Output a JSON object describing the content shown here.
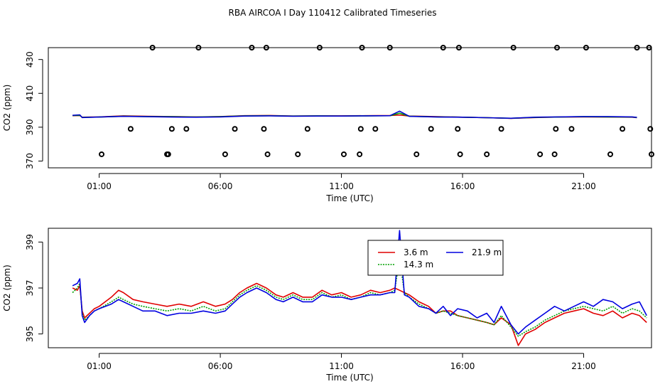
{
  "title": "RBA AIRCOA I  Day 110412  Calibrated Timeseries",
  "chart_data": [
    {
      "type": "scatter",
      "title": "",
      "xlabel": "Time (UTC)",
      "ylabel": "CO2 (ppm)",
      "xlim": [
        -1.1,
        23.8
      ],
      "ylim": [
        366,
        437
      ],
      "x_ticks": [
        1,
        6,
        11,
        16,
        21
      ],
      "x_tick_labels": [
        "01:00",
        "06:00",
        "11:00",
        "16:00",
        "21:00"
      ],
      "y_ticks": [
        370,
        390,
        410,
        430
      ],
      "y_tick_labels": [
        "370",
        "390",
        "410",
        "430"
      ],
      "grid": false,
      "series": [
        {
          "color": "#d00000",
          "style": "line",
          "x": [
            -0.1,
            0.2,
            0.3,
            1,
            2,
            3,
            4,
            5,
            6,
            7,
            8,
            9,
            10,
            11,
            12,
            13,
            13.4,
            13.8,
            15,
            16,
            17,
            18,
            19,
            20,
            21,
            22,
            23,
            23.2
          ],
          "y": [
            396.8,
            396.9,
            395.9,
            396.1,
            396.7,
            396.4,
            396.3,
            396.1,
            396.3,
            396.8,
            396.9,
            396.6,
            396.7,
            396.7,
            396.8,
            396.9,
            397.2,
            396.6,
            396.2,
            395.9,
            395.6,
            395.2,
            395.7,
            396.0,
            396.1,
            396.0,
            395.9,
            395.6
          ]
        },
        {
          "color": "#00a000",
          "style": "line",
          "x": [
            -0.1,
            0.2,
            0.3,
            1,
            2,
            3,
            4,
            5,
            6,
            7,
            8,
            9,
            10,
            11,
            12,
            13,
            13.4,
            13.8,
            15,
            16,
            17,
            18,
            19,
            20,
            21,
            22,
            23,
            23.2
          ],
          "y": [
            396.9,
            397.0,
            395.8,
            396.0,
            396.5,
            396.3,
            396.2,
            396.0,
            396.2,
            396.7,
            396.8,
            396.6,
            396.7,
            396.6,
            396.7,
            396.8,
            398.3,
            396.5,
            396.1,
            395.9,
            395.6,
            395.3,
            395.8,
            396.0,
            396.2,
            396.1,
            396.0,
            395.7
          ]
        },
        {
          "color": "#0000d0",
          "style": "line",
          "x": [
            -0.1,
            0.2,
            0.3,
            1,
            2,
            3,
            4,
            5,
            6,
            7,
            8,
            9,
            10,
            11,
            12,
            13,
            13.4,
            13.8,
            15,
            16,
            17,
            18,
            19,
            20,
            21,
            22,
            23,
            23.2
          ],
          "y": [
            397.0,
            397.3,
            395.7,
            396.0,
            396.4,
            396.2,
            396.0,
            395.9,
            396.1,
            396.6,
            396.7,
            396.5,
            396.6,
            396.6,
            396.7,
            396.8,
            399.5,
            396.4,
            396.0,
            395.9,
            395.6,
            395.3,
            395.9,
            396.1,
            396.3,
            396.3,
            396.1,
            395.8
          ]
        },
        {
          "color": "#000000",
          "style": "points",
          "x": [
            1.1,
            2.3,
            3.2,
            3.8,
            3.85,
            4.0,
            4.6,
            5.1,
            6.2,
            6.6,
            7.3,
            7.8,
            7.9,
            7.95,
            9.2,
            9.6,
            10.1,
            11.1,
            11.75,
            11.8,
            11.85,
            12.4,
            13.0,
            14.1,
            14.7,
            15.2,
            15.8,
            15.85,
            15.9,
            17.0,
            17.6,
            18.1,
            19.2,
            19.8,
            19.85,
            19.9,
            20.5,
            21.1,
            22.1,
            22.6,
            23.2,
            23.7,
            23.75,
            23.8
          ],
          "y": [
            374,
            389,
            437,
            374,
            374,
            389,
            389,
            437,
            374,
            389,
            437,
            389,
            437,
            374,
            374,
            389,
            437,
            374,
            374,
            389,
            437,
            389,
            437,
            374,
            389,
            437,
            389,
            437,
            374,
            374,
            389,
            437,
            374,
            374,
            389,
            437,
            389,
            437,
            374,
            389,
            437,
            437,
            389,
            374
          ]
        }
      ]
    },
    {
      "type": "line",
      "title": "",
      "xlabel": "Time (UTC)",
      "ylabel": "CO2 (ppm)",
      "xlim": [
        -1.1,
        23.8
      ],
      "ylim": [
        394.4,
        399.6
      ],
      "x_ticks": [
        1,
        6,
        11,
        16,
        21
      ],
      "x_tick_labels": [
        "01:00",
        "06:00",
        "11:00",
        "16:00",
        "21:00"
      ],
      "y_ticks": [
        395,
        397,
        399
      ],
      "y_tick_labels": [
        "395",
        "397",
        "399"
      ],
      "grid": false,
      "legend_position": "top-center",
      "series": [
        {
          "name": "3.6 m",
          "color": "#e00000",
          "x": [
            -0.1,
            0.1,
            0.2,
            0.3,
            0.4,
            0.6,
            0.8,
            1,
            1.5,
            1.8,
            2,
            2.4,
            2.8,
            3.3,
            3.8,
            4.3,
            4.8,
            5.3,
            5.8,
            6.2,
            6.5,
            6.8,
            7.1,
            7.5,
            7.9,
            8.3,
            8.6,
            9,
            9.4,
            9.8,
            10.2,
            10.6,
            11,
            11.4,
            11.8,
            12.2,
            12.6,
            13,
            13.2,
            13.4,
            13.6,
            13.8,
            14.2,
            14.6,
            14.9,
            15.2,
            15.5,
            15.8,
            16.2,
            16.6,
            17,
            17.3,
            17.6,
            18,
            18.3,
            18.6,
            19,
            19.4,
            19.8,
            20.2,
            20.6,
            21,
            21.4,
            21.8,
            22.2,
            22.6,
            23,
            23.3,
            23.6
          ],
          "y": [
            397.0,
            396.9,
            397.1,
            396.0,
            395.7,
            395.9,
            396.1,
            396.2,
            396.6,
            396.9,
            396.8,
            396.5,
            396.4,
            396.3,
            396.2,
            396.3,
            396.2,
            396.4,
            396.2,
            396.3,
            396.5,
            396.8,
            397.0,
            397.2,
            397.0,
            396.7,
            396.6,
            396.8,
            396.6,
            396.6,
            396.9,
            396.7,
            396.8,
            396.6,
            396.7,
            396.9,
            396.8,
            396.9,
            397.0,
            396.9,
            396.8,
            396.7,
            396.4,
            396.2,
            395.9,
            396.0,
            396.0,
            395.8,
            395.7,
            395.6,
            395.5,
            395.4,
            395.7,
            395.4,
            394.5,
            395.0,
            395.2,
            395.5,
            395.7,
            395.9,
            396.0,
            396.1,
            395.9,
            395.8,
            396.0,
            395.7,
            395.9,
            395.8,
            395.5
          ]
        },
        {
          "name": "14.3 m",
          "color": "#00a000",
          "dashed": true,
          "x": [
            -0.1,
            0.1,
            0.2,
            0.3,
            0.4,
            0.6,
            0.8,
            1,
            1.5,
            1.8,
            2,
            2.4,
            2.8,
            3.3,
            3.8,
            4.3,
            4.8,
            5.3,
            5.8,
            6.2,
            6.5,
            6.8,
            7.1,
            7.5,
            7.9,
            8.3,
            8.6,
            9,
            9.4,
            9.8,
            10.2,
            10.6,
            11,
            11.4,
            11.8,
            12.2,
            12.6,
            13,
            13.2,
            13.4,
            13.6,
            13.8,
            14.2,
            14.6,
            14.9,
            15.2,
            15.5,
            15.8,
            16.2,
            16.6,
            17,
            17.3,
            17.6,
            18,
            18.3,
            18.6,
            19,
            19.4,
            19.8,
            20.2,
            20.6,
            21,
            21.4,
            21.8,
            22.2,
            22.6,
            23,
            23.3,
            23.6
          ],
          "y": [
            396.8,
            397.0,
            397.2,
            395.9,
            395.6,
            395.8,
            396.0,
            396.1,
            396.4,
            396.6,
            396.5,
            396.3,
            396.2,
            396.1,
            396.0,
            396.1,
            396.0,
            396.2,
            396.0,
            396.1,
            396.4,
            396.7,
            396.9,
            397.1,
            396.9,
            396.6,
            396.5,
            396.7,
            396.5,
            396.5,
            396.8,
            396.6,
            396.7,
            396.5,
            396.6,
            396.8,
            396.7,
            396.8,
            396.9,
            398.3,
            396.8,
            396.6,
            396.3,
            396.1,
            395.9,
            396.0,
            395.9,
            395.8,
            395.7,
            395.6,
            395.5,
            395.4,
            395.8,
            395.3,
            394.9,
            395.1,
            395.3,
            395.6,
            395.8,
            396.0,
            396.1,
            396.2,
            396.1,
            396.0,
            396.2,
            395.9,
            396.1,
            396.0,
            395.7
          ]
        },
        {
          "name": "21.9 m",
          "color": "#0000e0",
          "x": [
            -0.1,
            0.1,
            0.2,
            0.3,
            0.4,
            0.6,
            0.8,
            1,
            1.5,
            1.8,
            2,
            2.4,
            2.8,
            3.3,
            3.8,
            4.3,
            4.8,
            5.3,
            5.8,
            6.2,
            6.5,
            6.8,
            7.1,
            7.5,
            7.9,
            8.3,
            8.6,
            9,
            9.4,
            9.8,
            10.2,
            10.6,
            11,
            11.4,
            11.8,
            12.2,
            12.6,
            13,
            13.2,
            13.4,
            13.6,
            13.8,
            14.2,
            14.6,
            14.9,
            15.2,
            15.5,
            15.8,
            16.2,
            16.6,
            17,
            17.3,
            17.6,
            18,
            18.3,
            18.6,
            19,
            19.4,
            19.8,
            20.2,
            20.6,
            21,
            21.4,
            21.8,
            22.2,
            22.6,
            23,
            23.3,
            23.6
          ],
          "y": [
            397.1,
            397.2,
            397.4,
            395.8,
            395.5,
            395.8,
            396.0,
            396.1,
            396.3,
            396.5,
            396.4,
            396.2,
            396.0,
            396.0,
            395.8,
            395.9,
            395.9,
            396.0,
            395.9,
            396.0,
            396.3,
            396.6,
            396.8,
            397.0,
            396.8,
            396.5,
            396.4,
            396.6,
            396.4,
            396.4,
            396.7,
            396.6,
            396.6,
            396.5,
            396.6,
            396.7,
            396.7,
            396.8,
            396.8,
            399.5,
            396.7,
            396.6,
            396.2,
            396.1,
            395.9,
            396.2,
            395.8,
            396.1,
            396.0,
            395.7,
            395.9,
            395.5,
            396.2,
            395.4,
            395.0,
            395.3,
            395.6,
            395.9,
            396.2,
            396.0,
            396.2,
            396.4,
            396.2,
            396.5,
            396.4,
            396.1,
            396.3,
            396.4,
            395.8
          ]
        }
      ]
    }
  ]
}
